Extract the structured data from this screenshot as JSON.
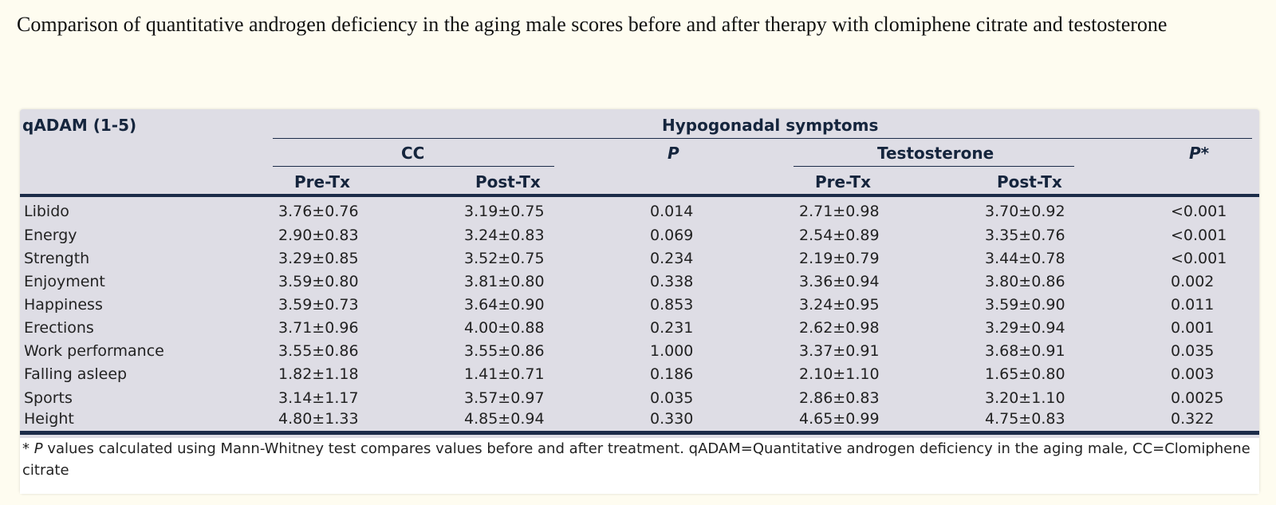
{
  "caption": "Comparison of quantitative androgen deficiency in the aging male scores before and after therapy with clomiphene citrate and testosterone",
  "table": {
    "corner_label": "qADAM (1-5)",
    "group_label": "Hypogonadal symptoms",
    "cc_label": "CC",
    "p_label": "P",
    "testosterone_label": "Testosterone",
    "pstar_label": "P*",
    "pre_label": "Pre-Tx",
    "post_label": "Post-Tx",
    "rows": [
      {
        "item": "Libido",
        "cc_pre": "3.76±0.76",
        "cc_post": "3.19±0.75",
        "p": "0.014",
        "t_pre": "2.71±0.98",
        "t_post": "3.70±0.92",
        "p_star": "<0.001"
      },
      {
        "item": "Energy",
        "cc_pre": "2.90±0.83",
        "cc_post": "3.24±0.83",
        "p": "0.069",
        "t_pre": "2.54±0.89",
        "t_post": "3.35±0.76",
        "p_star": "<0.001"
      },
      {
        "item": "Strength",
        "cc_pre": "3.29±0.85",
        "cc_post": "3.52±0.75",
        "p": "0.234",
        "t_pre": "2.19±0.79",
        "t_post": "3.44±0.78",
        "p_star": "<0.001"
      },
      {
        "item": "Enjoyment",
        "cc_pre": "3.59±0.80",
        "cc_post": "3.81±0.80",
        "p": "0.338",
        "t_pre": "3.36±0.94",
        "t_post": "3.80±0.86",
        "p_star": "0.002"
      },
      {
        "item": "Happiness",
        "cc_pre": "3.59±0.73",
        "cc_post": "3.64±0.90",
        "p": "0.853",
        "t_pre": "3.24±0.95",
        "t_post": "3.59±0.90",
        "p_star": "0.011"
      },
      {
        "item": "Erections",
        "cc_pre": "3.71±0.96",
        "cc_post": "4.00±0.88",
        "p": "0.231",
        "t_pre": "2.62±0.98",
        "t_post": "3.29±0.94",
        "p_star": "0.001"
      },
      {
        "item": "Work performance",
        "cc_pre": "3.55±0.86",
        "cc_post": "3.55±0.86",
        "p": "1.000",
        "t_pre": "3.37±0.91",
        "t_post": "3.68±0.91",
        "p_star": "0.035"
      },
      {
        "item": "Falling asleep",
        "cc_pre": "1.82±1.18",
        "cc_post": "1.41±0.71",
        "p": "0.186",
        "t_pre": "2.10±1.10",
        "t_post": "1.65±0.80",
        "p_star": "0.003"
      },
      {
        "item": "Sports",
        "cc_pre": "3.14±1.17",
        "cc_post": "3.57±0.97",
        "p": "0.035",
        "t_pre": "2.86±0.83",
        "t_post": "3.20±1.10",
        "p_star": "0.0025"
      },
      {
        "item": "Height",
        "cc_pre": "4.80±1.33",
        "cc_post": "4.85±0.94",
        "p": "0.330",
        "t_pre": "4.65±0.99",
        "t_post": "4.75±0.83",
        "p_star": "0.322"
      }
    ],
    "footnote_star": "*",
    "footnote_p": "P",
    "footnote_text": " values calculated using Mann-Whitney test compares values before and after treatment. qADAM=Quantitative androgen deficiency in the aging male, CC=Clomiphene citrate"
  }
}
